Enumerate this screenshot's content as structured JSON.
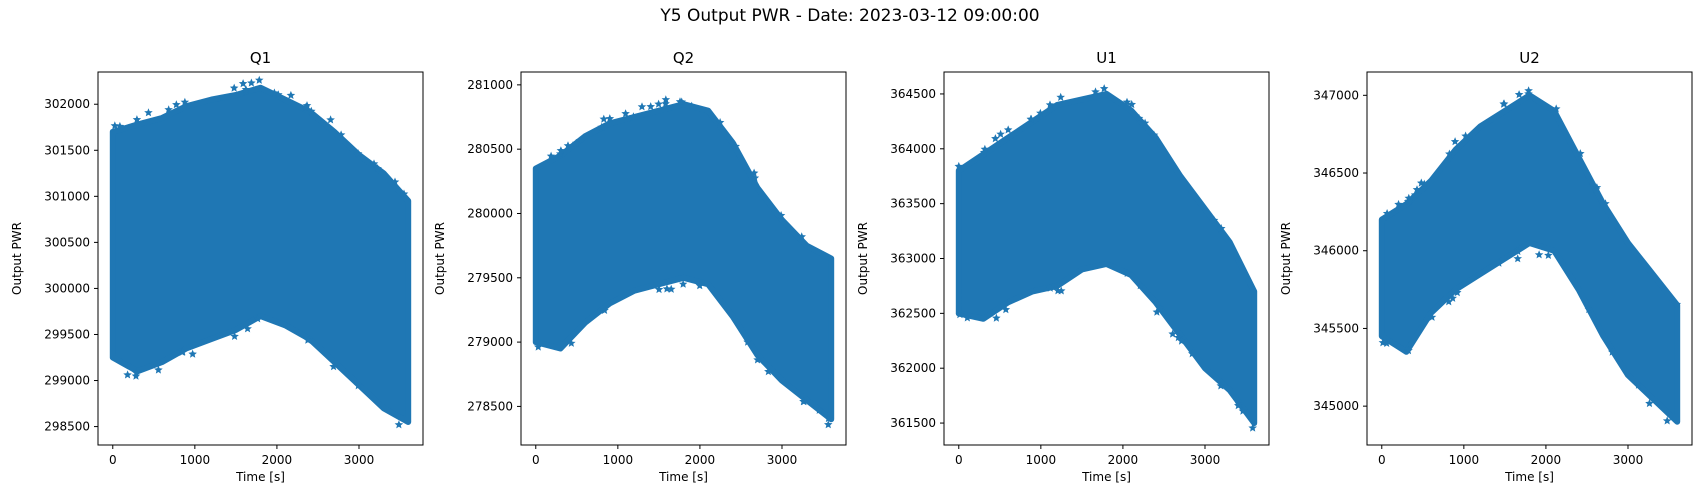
{
  "figure": {
    "title": "Y5 Output PWR - Date: 2023-03-12 09:00:00"
  },
  "chart_data": [
    {
      "type": "scatter",
      "title": "Q1",
      "xlabel": "Time [s]",
      "ylabel": "Output PWR",
      "marker": "star",
      "color": "#1f77b4",
      "xlim": [
        -180,
        3780
      ],
      "ylim": [
        298300,
        302350
      ],
      "xticks": [
        0,
        1000,
        2000,
        3000
      ],
      "yticks": [
        298500,
        299000,
        299500,
        300000,
        300500,
        301000,
        301500,
        302000
      ],
      "x": [
        0,
        300,
        600,
        900,
        1200,
        1500,
        1800,
        2100,
        2400,
        2700,
        3000,
        3300,
        3600
      ],
      "y_upper": [
        301700,
        301780,
        301850,
        301980,
        302050,
        302100,
        302180,
        302050,
        301920,
        301700,
        301450,
        301250,
        300950
      ],
      "y_lower": [
        299250,
        299100,
        299200,
        299350,
        299450,
        299550,
        299700,
        299600,
        299450,
        299200,
        298950,
        298700,
        298550
      ]
    },
    {
      "type": "scatter",
      "title": "Q2",
      "xlabel": "Time [s]",
      "ylabel": "Output PWR",
      "marker": "star",
      "color": "#1f77b4",
      "xlim": [
        -180,
        3780
      ],
      "ylim": [
        278200,
        281100
      ],
      "xticks": [
        0,
        1000,
        2000,
        3000
      ],
      "yticks": [
        278500,
        279000,
        279500,
        280000,
        280500,
        281000
      ],
      "x": [
        0,
        300,
        600,
        900,
        1200,
        1500,
        1800,
        2100,
        2400,
        2700,
        3000,
        3300,
        3600
      ],
      "y_upper": [
        280350,
        280450,
        280600,
        280700,
        280750,
        280800,
        280850,
        280800,
        280550,
        280200,
        279950,
        279750,
        279650
      ],
      "y_lower": [
        279000,
        278950,
        279150,
        279300,
        279400,
        279450,
        279500,
        279450,
        279200,
        278900,
        278700,
        278550,
        278400
      ]
    },
    {
      "type": "scatter",
      "title": "U1",
      "xlabel": "Time [s]",
      "ylabel": "Output PWR",
      "marker": "star",
      "color": "#1f77b4",
      "xlim": [
        -180,
        3780
      ],
      "ylim": [
        361300,
        364700
      ],
      "xticks": [
        0,
        1000,
        2000,
        3000
      ],
      "yticks": [
        361500,
        362000,
        362500,
        363000,
        363500,
        364000,
        364500
      ],
      "x": [
        0,
        300,
        600,
        900,
        1200,
        1500,
        1800,
        2100,
        2400,
        2700,
        3000,
        3300,
        3600
      ],
      "y_upper": [
        363800,
        363950,
        364100,
        364250,
        364400,
        364450,
        364500,
        364350,
        364100,
        363750,
        363450,
        363150,
        362700
      ],
      "y_lower": [
        362500,
        362450,
        362600,
        362700,
        362750,
        362900,
        362950,
        362850,
        362600,
        362300,
        362000,
        361800,
        361500
      ]
    },
    {
      "type": "scatter",
      "title": "U2",
      "xlabel": "Time [s]",
      "ylabel": "Output PWR",
      "marker": "star",
      "color": "#1f77b4",
      "xlim": [
        -180,
        3780
      ],
      "ylim": [
        344750,
        347150
      ],
      "xticks": [
        0,
        1000,
        2000,
        3000
      ],
      "yticks": [
        345000,
        345500,
        346000,
        346500,
        347000
      ],
      "x": [
        0,
        300,
        600,
        900,
        1200,
        1500,
        1800,
        2100,
        2400,
        2700,
        3000,
        3300,
        3600
      ],
      "y_upper": [
        346200,
        346300,
        346450,
        346650,
        346800,
        346900,
        347000,
        346900,
        346600,
        346300,
        346050,
        345850,
        345650
      ],
      "y_lower": [
        345450,
        345350,
        345600,
        345750,
        345850,
        345950,
        346050,
        346000,
        345750,
        345450,
        345200,
        345050,
        344900
      ]
    }
  ]
}
